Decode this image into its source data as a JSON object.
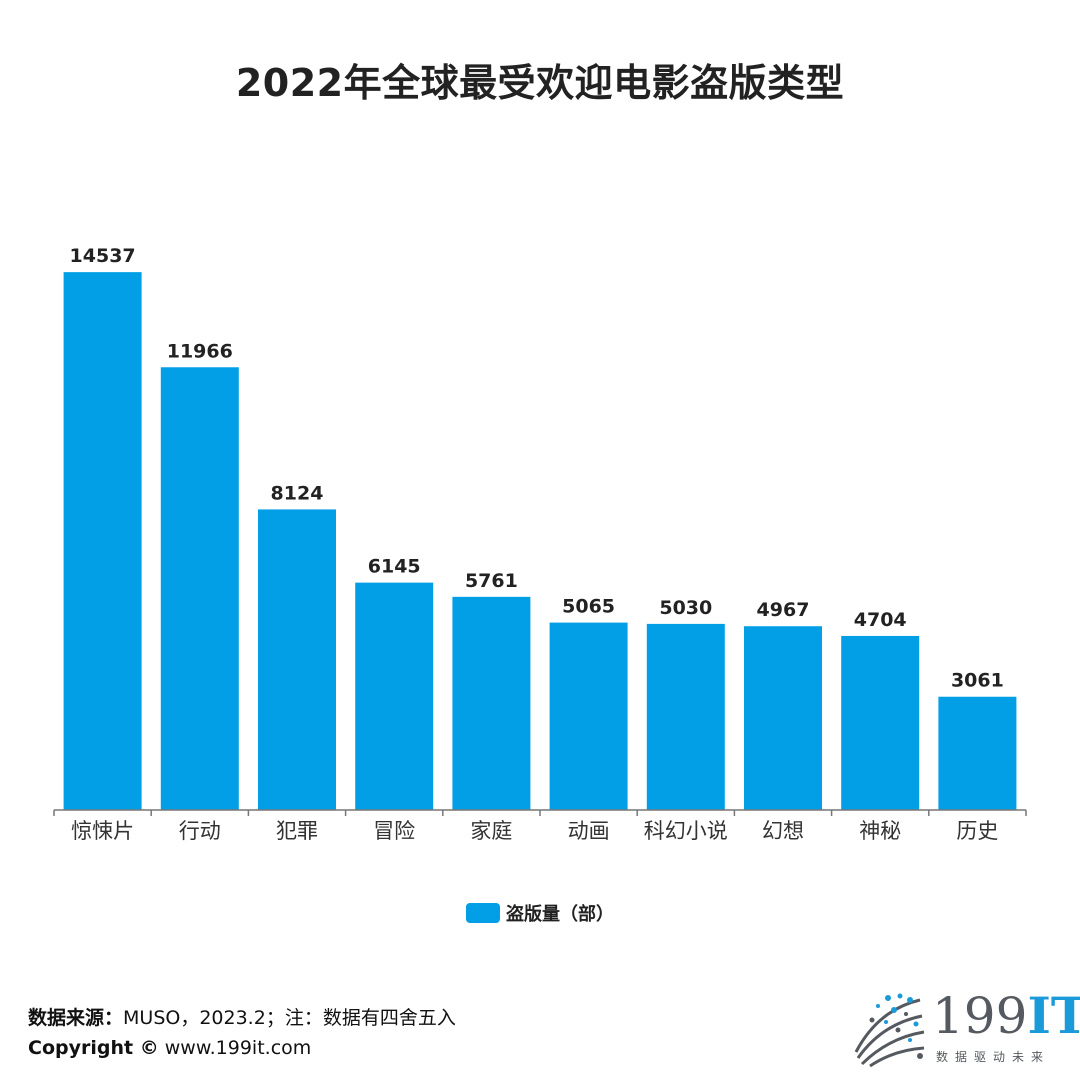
{
  "colors": {
    "bar": "#039fe6",
    "axis": "#777777"
  },
  "chart_data": {
    "type": "bar",
    "title": "2022年全球最受欢迎电影盗版类型",
    "categories": [
      "惊悚片",
      "行动",
      "犯罪",
      "冒险",
      "家庭",
      "动画",
      "科幻小说",
      "幻想",
      "神秘",
      "历史"
    ],
    "series": [
      {
        "name": "盗版量（部）",
        "values": [
          14537,
          11966,
          8124,
          6145,
          5761,
          5065,
          5030,
          4967,
          4704,
          3061
        ]
      }
    ],
    "ylim": [
      0,
      15000
    ],
    "grid": false,
    "legend": "bottom-center",
    "data_labels": true
  },
  "footer": {
    "source_label": "数据来源：",
    "source_text": "MUSO，2023.2；注：数据有四舍五入",
    "copyright_label": "Copyright ©",
    "copyright_text": " www.199it.com"
  },
  "logo": {
    "text_main": "199",
    "text_accent": "IT",
    "tagline": "数据驱动未来",
    "icon": "dot-sphere-logo-icon"
  }
}
